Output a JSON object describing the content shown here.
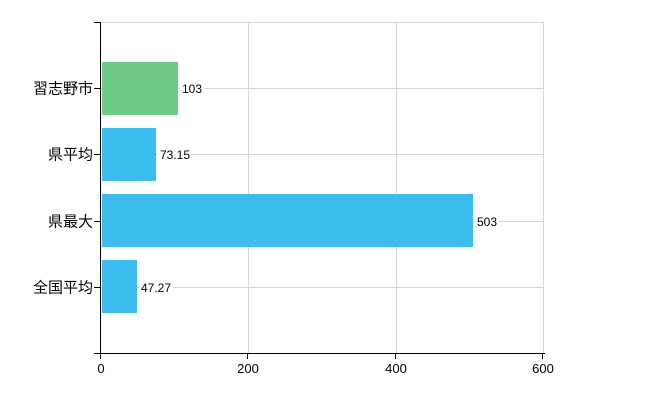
{
  "chart_data": {
    "type": "bar",
    "orientation": "horizontal",
    "title": "",
    "xlabel": "",
    "ylabel": "",
    "categories": [
      "習志野市",
      "県平均",
      "県最大",
      "全国平均"
    ],
    "values": [
      103,
      73.15,
      503,
      47.27
    ],
    "value_labels": [
      "103",
      "73.15",
      "503",
      "47.27"
    ],
    "bar_colors": [
      "#6ecb85",
      "#3cbdee",
      "#3cbdee",
      "#3cbdee"
    ],
    "xlim": [
      0,
      600
    ],
    "x_ticks": [
      0,
      200,
      400,
      600
    ],
    "x_tick_labels": [
      "0",
      "200",
      "400",
      "600"
    ],
    "grid": true,
    "legend": "none",
    "colors": {
      "background": "#ffffff",
      "grid": "#d5d8d2",
      "axis": "#000000",
      "text": "#000000",
      "bar_green": "#6ecb85",
      "bar_blue": "#3cbdee"
    }
  }
}
